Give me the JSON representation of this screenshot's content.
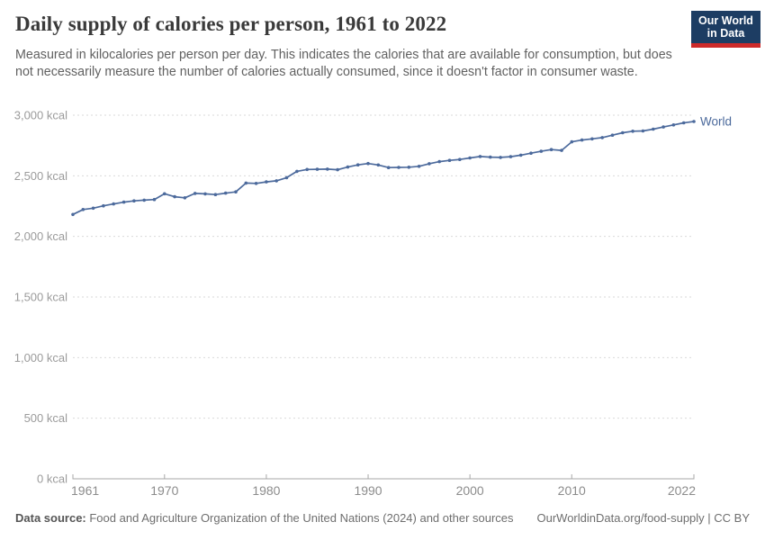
{
  "header": {
    "title": "Daily supply of calories per person, 1961 to 2022",
    "subtitle": "Measured in kilocalories per person per day. This indicates the calories that are available for consumption, but does not necessarily measure the number of calories actually consumed, since it doesn't factor in consumer waste."
  },
  "logo": {
    "line1": "Our World",
    "line2": "in Data"
  },
  "chart_data": {
    "type": "line",
    "title": "Daily supply of calories per person, 1961 to 2022",
    "unit": "kcal",
    "xlabel": "",
    "ylabel": "kcal per person per day",
    "xlim": [
      1961,
      2022
    ],
    "ylim": [
      0,
      3000
    ],
    "grid": "horizontal-dashed",
    "legend_position": "end-of-line",
    "x_ticks": [
      1961,
      1970,
      1980,
      1990,
      2000,
      2010,
      2022
    ],
    "y_ticks": [
      0,
      500,
      1000,
      1500,
      2000,
      2500,
      3000
    ],
    "y_tick_labels": [
      "0 kcal",
      "500 kcal",
      "1,000 kcal",
      "1,500 kcal",
      "2,000 kcal",
      "2,500 kcal",
      "3,000 kcal"
    ],
    "series": [
      {
        "name": "World",
        "color": "#4C6A9C",
        "x": [
          1961,
          1962,
          1963,
          1964,
          1965,
          1966,
          1967,
          1968,
          1969,
          1970,
          1971,
          1972,
          1973,
          1974,
          1975,
          1976,
          1977,
          1978,
          1979,
          1980,
          1981,
          1982,
          1983,
          1984,
          1985,
          1986,
          1987,
          1988,
          1989,
          1990,
          1991,
          1992,
          1993,
          1994,
          1995,
          1996,
          1997,
          1998,
          1999,
          2000,
          2001,
          2002,
          2003,
          2004,
          2005,
          2006,
          2007,
          2008,
          2009,
          2010,
          2011,
          2012,
          2013,
          2014,
          2015,
          2016,
          2017,
          2018,
          2019,
          2020,
          2021,
          2022
        ],
        "values": [
          2181,
          2222,
          2233,
          2252,
          2268,
          2283,
          2293,
          2299,
          2304,
          2352,
          2327,
          2318,
          2355,
          2351,
          2345,
          2357,
          2367,
          2440,
          2437,
          2450,
          2459,
          2485,
          2537,
          2552,
          2554,
          2555,
          2550,
          2572,
          2590,
          2601,
          2589,
          2568,
          2569,
          2571,
          2578,
          2600,
          2617,
          2627,
          2635,
          2647,
          2659,
          2654,
          2652,
          2658,
          2670,
          2687,
          2702,
          2716,
          2710,
          2780,
          2795,
          2805,
          2815,
          2835,
          2855,
          2868,
          2870,
          2885,
          2903,
          2920,
          2937,
          2948
        ]
      }
    ]
  },
  "footer": {
    "datasource_label": "Data source:",
    "datasource_text": " Food and Agriculture Organization of the United Nations (2024) and other sources",
    "attribution": "OurWorldinData.org/food-supply | CC BY"
  },
  "colors": {
    "line": "#4C6A9C",
    "gridline": "#dadada",
    "axis_line": "#a7a7a7",
    "axis_text_y": "#9b9b9b",
    "axis_text_x": "#8c8c8c",
    "logo_bg": "#1d3d63",
    "logo_red": "#cd2a2a"
  }
}
